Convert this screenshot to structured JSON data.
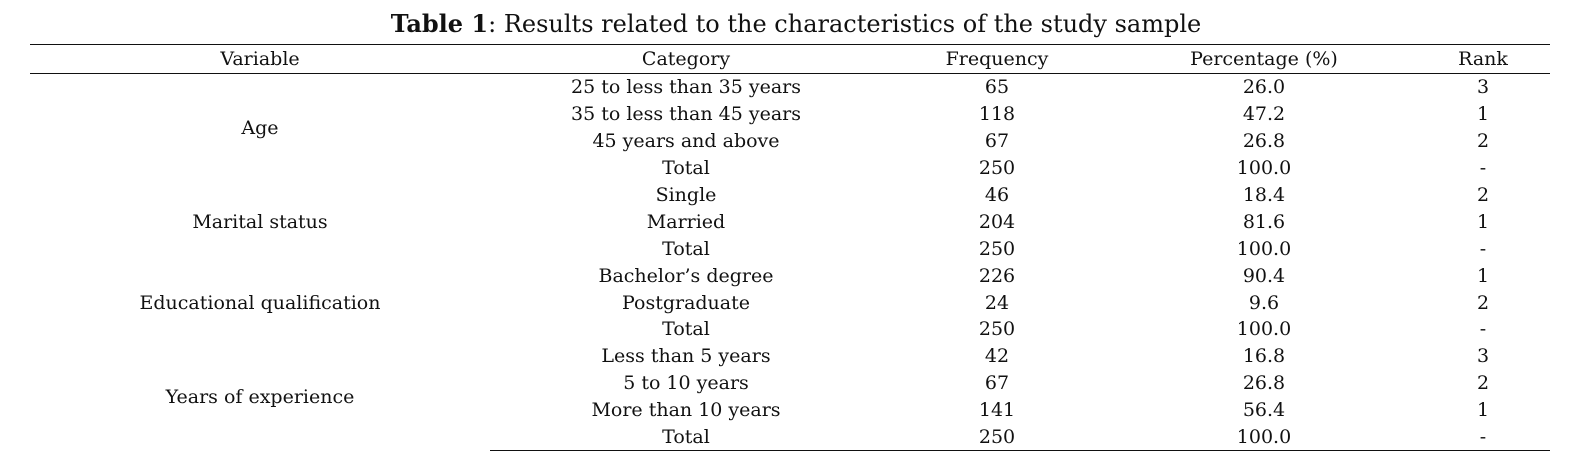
{
  "caption": {
    "lead": "Table 1",
    "text": ": Results related to the characteristics of the study sample"
  },
  "header": {
    "variable": "Variable",
    "category": "Category",
    "frequency": "Frequency",
    "percentage": "Percentage (%)",
    "rank": "Rank"
  },
  "groups": [
    {
      "variable": "Age",
      "rows": [
        {
          "category": "25 to less than 35 years",
          "frequency": "65",
          "percentage": "26.0",
          "rank": "3"
        },
        {
          "category": "35 to less than 45 years",
          "frequency": "118",
          "percentage": "47.2",
          "rank": "1"
        },
        {
          "category": "45 years and above",
          "frequency": "67",
          "percentage": "26.8",
          "rank": "2"
        },
        {
          "category": "Total",
          "frequency": "250",
          "percentage": "100.0",
          "rank": "-"
        }
      ]
    },
    {
      "variable": "Marital status",
      "rows": [
        {
          "category": "Single",
          "frequency": "46",
          "percentage": "18.4",
          "rank": "2"
        },
        {
          "category": "Married",
          "frequency": "204",
          "percentage": "81.6",
          "rank": "1"
        },
        {
          "category": "Total",
          "frequency": "250",
          "percentage": "100.0",
          "rank": "-"
        }
      ]
    },
    {
      "variable": "Educational qualification",
      "rows": [
        {
          "category": "Bachelor’s degree",
          "frequency": "226",
          "percentage": "90.4",
          "rank": "1"
        },
        {
          "category": "Postgraduate",
          "frequency": "24",
          "percentage": "9.6",
          "rank": "2"
        },
        {
          "category": "Total",
          "frequency": "250",
          "percentage": "100.0",
          "rank": "-"
        }
      ]
    },
    {
      "variable": "Years of experience",
      "rows": [
        {
          "category": "Less than 5 years",
          "frequency": "42",
          "percentage": "16.8",
          "rank": "3"
        },
        {
          "category": "5 to 10 years",
          "frequency": "67",
          "percentage": "26.8",
          "rank": "2"
        },
        {
          "category": "More than 10 years",
          "frequency": "141",
          "percentage": "56.4",
          "rank": "1"
        },
        {
          "category": "Total",
          "frequency": "250",
          "percentage": "100.0",
          "rank": "-"
        }
      ]
    }
  ]
}
